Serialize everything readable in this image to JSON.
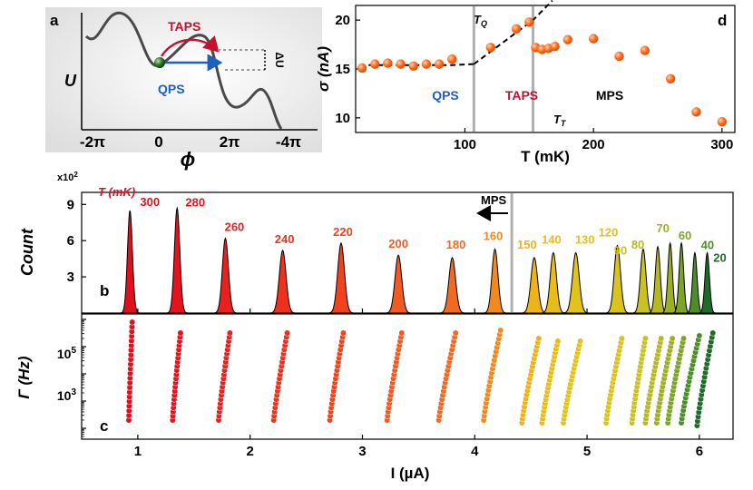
{
  "colors": {
    "red": "#c8102e",
    "blue": "#1f5fbf",
    "orange_dot": "#ff6a1a",
    "grey_line": "#b0b0b0"
  },
  "panel_a": {
    "label": "a",
    "ylabel": "U",
    "xlabel": "ϕ",
    "xticks": [
      "-2π",
      "0",
      "2π",
      "-4π"
    ],
    "taps": "TAPS",
    "qps": "QPS",
    "delta_u": "ΔU"
  },
  "panel_b": {
    "label": "b",
    "ylabel": "Count",
    "scale": "x10",
    "scale_exp": "2",
    "series_title": "T (mK)",
    "mps": "MPS",
    "arrow": "←"
  },
  "panel_c": {
    "label": "c",
    "ylabel": "Γ (Hz)",
    "xlabel": "I (µA)",
    "ytick_base": "10",
    "ytick_exp_high": "5",
    "ytick_exp_low": "3"
  },
  "panel_d": {
    "label": "d",
    "ylabel": "σ (nA)",
    "xlabel": "T (mK)",
    "tq": "T",
    "tq_sub": "Q",
    "tt": "T",
    "tt_sub": "T",
    "qps": "QPS",
    "taps": "TAPS",
    "mps": "MPS"
  },
  "chart_data": [
    {
      "type": "scatter",
      "panel": "d",
      "xlabel": "T (mK)",
      "ylabel": "σ (nA)",
      "xlim": [
        15,
        310
      ],
      "ylim": [
        8.5,
        21.5
      ],
      "xticks": [
        100,
        200,
        300
      ],
      "yticks": [
        10,
        15,
        20
      ],
      "markers": {
        "T_Q": 107,
        "T_T": 153
      },
      "points": [
        {
          "T": 20,
          "sigma": 15.1
        },
        {
          "T": 30,
          "sigma": 15.5
        },
        {
          "T": 40,
          "sigma": 15.6
        },
        {
          "T": 50,
          "sigma": 15.5
        },
        {
          "T": 60,
          "sigma": 15.3
        },
        {
          "T": 70,
          "sigma": 15.5
        },
        {
          "T": 80,
          "sigma": 15.5
        },
        {
          "T": 90,
          "sigma": 16.0
        },
        {
          "T": 120,
          "sigma": 17.2
        },
        {
          "T": 140,
          "sigma": 19.1
        },
        {
          "T": 150,
          "sigma": 19.8
        },
        {
          "T": 155,
          "sigma": 17.2
        },
        {
          "T": 160,
          "sigma": 17.0
        },
        {
          "T": 165,
          "sigma": 17.1
        },
        {
          "T": 170,
          "sigma": 17.3
        },
        {
          "T": 180,
          "sigma": 18.0
        },
        {
          "T": 200,
          "sigma": 18.1
        },
        {
          "T": 220,
          "sigma": 16.3
        },
        {
          "T": 240,
          "sigma": 16.9
        },
        {
          "T": 260,
          "sigma": 14.0
        },
        {
          "T": 280,
          "sigma": 10.6
        },
        {
          "T": 300,
          "sigma": 9.6
        }
      ],
      "fit_segments": [
        [
          [
            18,
            15.4
          ],
          [
            90,
            15.4
          ],
          [
            107,
            15.5
          ]
        ],
        [
          [
            107,
            15.5
          ],
          [
            153,
            20.0
          ],
          [
            168,
            22.0
          ]
        ]
      ]
    },
    {
      "type": "histogram",
      "panel": "b",
      "xlabel": "I (µA)",
      "ylabel": "Count (x10^2)",
      "xlim": [
        0.5,
        6.3
      ],
      "ylim": [
        0,
        10
      ],
      "yticks": [
        3,
        6,
        9
      ],
      "mps_boundary_I": 4.33,
      "peaks": [
        {
          "T": "300",
          "I": 0.93,
          "height": 8.5,
          "width": 0.022,
          "color": "#e0101e"
        },
        {
          "T": "280",
          "I": 1.35,
          "height": 8.7,
          "width": 0.024,
          "color": "#e3141e"
        },
        {
          "T": "260",
          "I": 1.78,
          "height": 6.2,
          "width": 0.027,
          "color": "#e8211e"
        },
        {
          "T": "240",
          "I": 2.29,
          "height": 5.2,
          "width": 0.03,
          "color": "#ec321e"
        },
        {
          "T": "220",
          "I": 2.81,
          "height": 5.8,
          "width": 0.03,
          "color": "#ef431e"
        },
        {
          "T": "200",
          "I": 3.32,
          "height": 4.8,
          "width": 0.03,
          "color": "#f15a22"
        },
        {
          "T": "180",
          "I": 3.8,
          "height": 4.6,
          "width": 0.03,
          "color": "#f06a22"
        },
        {
          "T": "160",
          "I": 4.18,
          "height": 5.3,
          "width": 0.027,
          "color": "#f08a1e"
        },
        {
          "T": "150",
          "I": 4.53,
          "height": 4.6,
          "width": 0.03,
          "color": "#efb31a"
        },
        {
          "T": "140",
          "I": 4.7,
          "height": 5.0,
          "width": 0.028,
          "color": "#e9bd18"
        },
        {
          "T": "130",
          "I": 4.9,
          "height": 5.0,
          "width": 0.03,
          "color": "#e3c21a"
        },
        {
          "T": "120",
          "I": 5.27,
          "height": 5.6,
          "width": 0.028,
          "color": "#d9c31e"
        },
        {
          "T": "90",
          "I": 5.5,
          "height": 5.3,
          "width": 0.025,
          "color": "#c8c222"
        },
        {
          "T": "80",
          "I": 5.63,
          "height": 5.5,
          "width": 0.022,
          "color": "#b7b922"
        },
        {
          "T": "70",
          "I": 5.74,
          "height": 5.8,
          "width": 0.02,
          "color": "#9db023"
        },
        {
          "T": "60",
          "I": 5.84,
          "height": 5.8,
          "width": 0.02,
          "color": "#7da426"
        },
        {
          "T": "40",
          "I": 5.96,
          "height": 5.0,
          "width": 0.02,
          "color": "#4d8d2a"
        },
        {
          "T": "20",
          "I": 6.07,
          "height": 5.0,
          "width": 0.02,
          "color": "#1f6b2a"
        }
      ]
    },
    {
      "type": "scatter",
      "panel": "c",
      "xlabel": "I (µA)",
      "ylabel": "Γ (Hz)",
      "xlim": [
        0.5,
        6.3
      ],
      "ylog_range": [
        1.6,
        6.2
      ],
      "xticks": [
        1,
        2,
        3,
        4,
        5,
        6
      ],
      "ytick_log": [
        3,
        5
      ],
      "series": [
        {
          "T": "300",
          "I_start": 0.92,
          "I_end": 0.95,
          "log_min": 2.3,
          "log_max": 5.9,
          "color": "#e0101e"
        },
        {
          "T": "280",
          "I_start": 1.31,
          "I_end": 1.38,
          "log_min": 2.3,
          "log_max": 5.5,
          "color": "#e3141e"
        },
        {
          "T": "260",
          "I_start": 1.72,
          "I_end": 1.82,
          "log_min": 2.3,
          "log_max": 5.5,
          "color": "#e8211e"
        },
        {
          "T": "240",
          "I_start": 2.21,
          "I_end": 2.33,
          "log_min": 2.3,
          "log_max": 5.5,
          "color": "#ec321e"
        },
        {
          "T": "220",
          "I_start": 2.71,
          "I_end": 2.83,
          "log_min": 2.3,
          "log_max": 5.5,
          "color": "#ef431e"
        },
        {
          "T": "200",
          "I_start": 3.22,
          "I_end": 3.35,
          "log_min": 2.3,
          "log_max": 5.5,
          "color": "#f15a22"
        },
        {
          "T": "180",
          "I_start": 3.68,
          "I_end": 3.83,
          "log_min": 2.3,
          "log_max": 5.5,
          "color": "#f06a22"
        },
        {
          "T": "160",
          "I_start": 4.08,
          "I_end": 4.23,
          "log_min": 2.3,
          "log_max": 5.6,
          "color": "#f08a1e"
        },
        {
          "T": "150",
          "I_start": 4.42,
          "I_end": 4.57,
          "log_min": 2.2,
          "log_max": 5.3,
          "color": "#efb31a"
        },
        {
          "T": "140",
          "I_start": 4.6,
          "I_end": 4.74,
          "log_min": 2.2,
          "log_max": 5.2,
          "color": "#e9bd18"
        },
        {
          "T": "130",
          "I_start": 4.79,
          "I_end": 4.94,
          "log_min": 2.2,
          "log_max": 5.2,
          "color": "#e3c21a"
        },
        {
          "T": "120",
          "I_start": 5.17,
          "I_end": 5.31,
          "log_min": 2.2,
          "log_max": 5.3,
          "color": "#d9c31e"
        },
        {
          "T": "90",
          "I_start": 5.4,
          "I_end": 5.52,
          "log_min": 2.2,
          "log_max": 5.3,
          "color": "#c8c222"
        },
        {
          "T": "80",
          "I_start": 5.52,
          "I_end": 5.66,
          "log_min": 2.2,
          "log_max": 5.3,
          "color": "#b7b922"
        },
        {
          "T": "70",
          "I_start": 5.62,
          "I_end": 5.76,
          "log_min": 2.2,
          "log_max": 5.3,
          "color": "#9db023"
        },
        {
          "T": "60",
          "I_start": 5.72,
          "I_end": 5.86,
          "log_min": 2.2,
          "log_max": 5.3,
          "color": "#7da426"
        },
        {
          "T": "40",
          "I_start": 5.84,
          "I_end": 6.0,
          "log_min": 2.2,
          "log_max": 5.4,
          "color": "#4d8d2a"
        },
        {
          "T": "20",
          "I_start": 5.98,
          "I_end": 6.12,
          "log_min": 2.1,
          "log_max": 5.5,
          "color": "#1f6b2a"
        }
      ]
    }
  ]
}
